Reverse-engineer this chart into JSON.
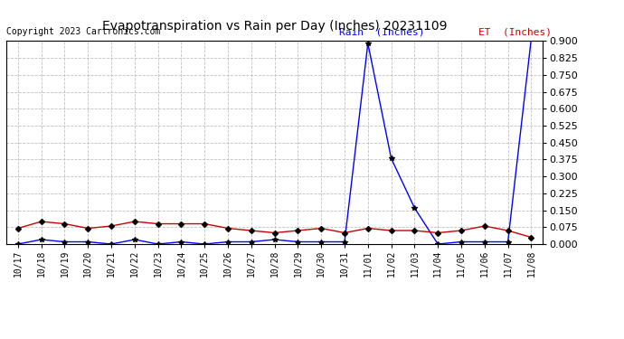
{
  "title": "Evapotranspiration vs Rain per Day (Inches) 20231109",
  "copyright": "Copyright 2023 Cartronics.com",
  "legend_rain": "Rain  (Inches)",
  "legend_et": "ET  (Inches)",
  "dates": [
    "10/17",
    "10/18",
    "10/19",
    "10/20",
    "10/21",
    "10/22",
    "10/23",
    "10/24",
    "10/25",
    "10/26",
    "10/27",
    "10/28",
    "10/29",
    "10/30",
    "10/31",
    "11/01",
    "11/02",
    "11/03",
    "11/04",
    "11/05",
    "11/06",
    "11/07",
    "11/08"
  ],
  "rain": [
    0.0,
    0.02,
    0.01,
    0.01,
    0.0,
    0.02,
    0.0,
    0.01,
    0.0,
    0.01,
    0.01,
    0.02,
    0.01,
    0.01,
    0.01,
    0.89,
    0.38,
    0.16,
    0.0,
    0.01,
    0.01,
    0.01,
    0.91
  ],
  "et": [
    0.07,
    0.1,
    0.09,
    0.07,
    0.08,
    0.1,
    0.09,
    0.09,
    0.09,
    0.07,
    0.06,
    0.05,
    0.06,
    0.07,
    0.05,
    0.07,
    0.06,
    0.06,
    0.05,
    0.06,
    0.08,
    0.06,
    0.03
  ],
  "rain_color": "#0000ff",
  "et_color": "#cc0000",
  "background_color": "#ffffff",
  "grid_color": "#c0c0c0",
  "ylim_min": 0.0,
  "ylim_max": 0.9,
  "yticks": [
    0.0,
    0.075,
    0.15,
    0.225,
    0.3,
    0.375,
    0.45,
    0.525,
    0.6,
    0.675,
    0.75,
    0.825,
    0.9
  ],
  "title_fontsize": 10,
  "copyright_fontsize": 7,
  "legend_fontsize": 8,
  "tick_fontsize": 7
}
